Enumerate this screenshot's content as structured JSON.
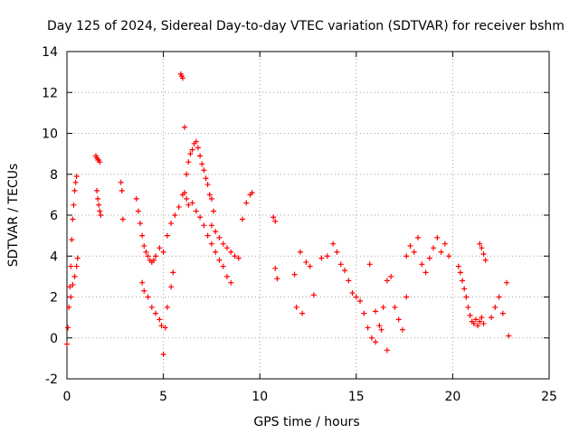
{
  "chart_data": {
    "type": "scatter",
    "title": "Day 125 of 2024, Sidereal Day-to-day VTEC variation (SDTVAR) for receiver bshm",
    "xlabel": "GPS time / hours",
    "ylabel": "SDTVAR / TECUs",
    "xlim": [
      0,
      25
    ],
    "ylim": [
      -2,
      14
    ],
    "xticks": [
      0,
      5,
      10,
      15,
      20,
      25
    ],
    "yticks": [
      -2,
      0,
      2,
      4,
      6,
      8,
      10,
      12,
      14
    ],
    "grid": true,
    "marker": "plus",
    "series": [
      {
        "name": "SDTVAR",
        "color": "#ff0000",
        "x": [
          0.0,
          0.05,
          0.1,
          0.15,
          0.2,
          0.25,
          0.3,
          0.35,
          0.4,
          0.45,
          0.5,
          0.2,
          0.3,
          0.4,
          0.5,
          0.55,
          1.5,
          1.55,
          1.6,
          1.65,
          1.7,
          1.55,
          1.6,
          1.65,
          1.7,
          1.75,
          2.8,
          2.85,
          2.9,
          3.6,
          3.7,
          3.8,
          3.9,
          4.0,
          4.1,
          4.2,
          4.3,
          4.4,
          4.5,
          4.6,
          4.8,
          3.9,
          4.0,
          4.2,
          4.4,
          4.6,
          4.8,
          4.9,
          5.0,
          5.1,
          5.2,
          5.4,
          5.5,
          5.0,
          5.2,
          5.4,
          5.6,
          5.8,
          6.0,
          6.1,
          6.2,
          6.3,
          5.9,
          5.95,
          6.0,
          6.1,
          6.2,
          6.3,
          6.4,
          6.5,
          6.6,
          6.7,
          6.8,
          6.9,
          7.0,
          7.1,
          7.2,
          7.3,
          7.4,
          7.5,
          7.6,
          6.5,
          6.7,
          6.9,
          7.1,
          7.3,
          7.5,
          7.7,
          7.9,
          8.1,
          8.3,
          8.5,
          7.5,
          7.7,
          7.9,
          8.1,
          8.3,
          8.5,
          8.7,
          8.9,
          9.1,
          9.3,
          9.5,
          9.6,
          10.7,
          10.8,
          10.8,
          10.9,
          11.8,
          11.9,
          12.1,
          12.2,
          12.4,
          12.6,
          12.8,
          13.2,
          13.5,
          13.8,
          14.0,
          14.2,
          14.4,
          14.6,
          14.8,
          15.0,
          15.2,
          15.4,
          15.6,
          15.8,
          16.0,
          16.2,
          16.4,
          16.6,
          16.8,
          17.0,
          17.2,
          17.4,
          17.6,
          15.7,
          16.0,
          16.3,
          16.6,
          17.6,
          17.8,
          18.0,
          18.2,
          18.4,
          18.6,
          18.8,
          19.0,
          19.2,
          19.4,
          19.6,
          19.8,
          20.3,
          20.4,
          20.5,
          20.6,
          20.7,
          20.8,
          20.9,
          21.0,
          21.1,
          21.2,
          21.3,
          21.4,
          21.5,
          21.6,
          21.4,
          21.5,
          21.6,
          21.7,
          22.0,
          22.2,
          22.4,
          22.6,
          22.8,
          22.9
        ],
        "y": [
          -0.3,
          0.5,
          1.5,
          2.5,
          3.5,
          4.8,
          5.8,
          6.5,
          7.2,
          7.6,
          7.9,
          2.0,
          2.6,
          3.0,
          3.5,
          3.9,
          8.9,
          8.8,
          8.7,
          8.7,
          8.6,
          7.2,
          6.8,
          6.5,
          6.2,
          6.0,
          7.6,
          7.2,
          5.8,
          6.8,
          6.2,
          5.6,
          5.0,
          4.5,
          4.2,
          4.0,
          3.8,
          3.7,
          3.8,
          4.0,
          4.4,
          2.7,
          2.3,
          2.0,
          1.5,
          1.2,
          0.9,
          0.6,
          -0.8,
          0.5,
          1.5,
          2.5,
          3.2,
          4.2,
          5.0,
          5.6,
          6.0,
          6.4,
          7.0,
          7.1,
          6.8,
          6.5,
          12.9,
          12.8,
          12.7,
          10.3,
          8.0,
          8.6,
          9.0,
          9.2,
          9.5,
          9.6,
          9.3,
          8.9,
          8.5,
          8.2,
          7.8,
          7.5,
          7.0,
          6.8,
          6.2,
          6.6,
          6.2,
          5.9,
          5.5,
          5.0,
          4.6,
          4.2,
          3.8,
          3.5,
          3.0,
          2.7,
          5.5,
          5.2,
          4.9,
          4.6,
          4.4,
          4.2,
          4.0,
          3.9,
          5.8,
          6.6,
          7.0,
          7.1,
          5.9,
          5.7,
          3.4,
          2.9,
          3.1,
          1.5,
          4.2,
          1.2,
          3.7,
          3.5,
          2.1,
          3.9,
          4.0,
          4.6,
          4.2,
          3.6,
          3.3,
          2.8,
          2.2,
          2.0,
          1.8,
          1.2,
          0.5,
          0.0,
          -0.2,
          0.6,
          1.5,
          2.8,
          3.0,
          1.5,
          0.9,
          0.4,
          2.0,
          3.6,
          1.3,
          0.4,
          -0.6,
          4.0,
          4.5,
          4.2,
          4.9,
          3.6,
          3.2,
          3.9,
          4.4,
          4.9,
          4.2,
          4.6,
          4.0,
          3.5,
          3.2,
          2.8,
          2.4,
          2.0,
          1.5,
          1.1,
          0.8,
          0.7,
          0.9,
          0.6,
          0.8,
          1.0,
          0.7,
          4.6,
          4.4,
          4.1,
          3.8,
          1.0,
          1.5,
          2.0,
          1.2,
          2.7,
          0.1
        ]
      }
    ]
  }
}
